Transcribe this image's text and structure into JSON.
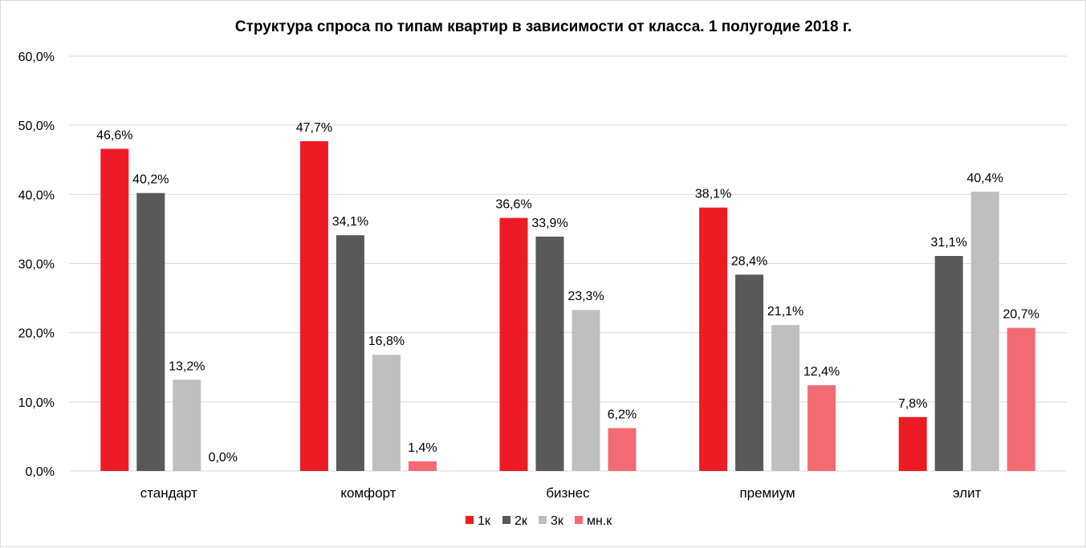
{
  "chart_data": {
    "type": "bar",
    "title": "Структура  спроса по типам квартир в зависимости от класса. 1 полугодие 2018 г.",
    "xlabel": "",
    "ylabel": "",
    "ylim": [
      0,
      60
    ],
    "y_ticks": [
      0,
      10,
      20,
      30,
      40,
      50,
      60
    ],
    "y_tick_labels": [
      "0,0%",
      "10,0%",
      "20,0%",
      "30,0%",
      "40,0%",
      "50,0%",
      "60,0%"
    ],
    "categories": [
      "стандарт",
      "комфорт",
      "бизнес",
      "премиум",
      "элит"
    ],
    "series": [
      {
        "name": "1к",
        "color": "#ed1c24",
        "values": [
          46.6,
          47.7,
          36.6,
          38.1,
          7.8
        ],
        "labels": [
          "46,6%",
          "47,7%",
          "36,6%",
          "38,1%",
          "7,8%"
        ]
      },
      {
        "name": "2к",
        "color": "#595959",
        "values": [
          40.2,
          34.1,
          33.9,
          28.4,
          31.1
        ],
        "labels": [
          "40,2%",
          "34,1%",
          "33,9%",
          "28,4%",
          "31,1%"
        ]
      },
      {
        "name": "3к",
        "color": "#bfbfbf",
        "values": [
          13.2,
          16.8,
          23.3,
          21.1,
          40.4
        ],
        "labels": [
          "13,2%",
          "16,8%",
          "23,3%",
          "21,1%",
          "40,4%"
        ]
      },
      {
        "name": "мн.к",
        "color": "#f26b73",
        "values": [
          0.0,
          1.4,
          6.2,
          12.4,
          20.7
        ],
        "labels": [
          "0,0%",
          "1,4%",
          "6,2%",
          "12,4%",
          "20,7%"
        ]
      }
    ],
    "grid": true,
    "gridline_color": "#d9d9d9",
    "legend_position": "bottom"
  }
}
